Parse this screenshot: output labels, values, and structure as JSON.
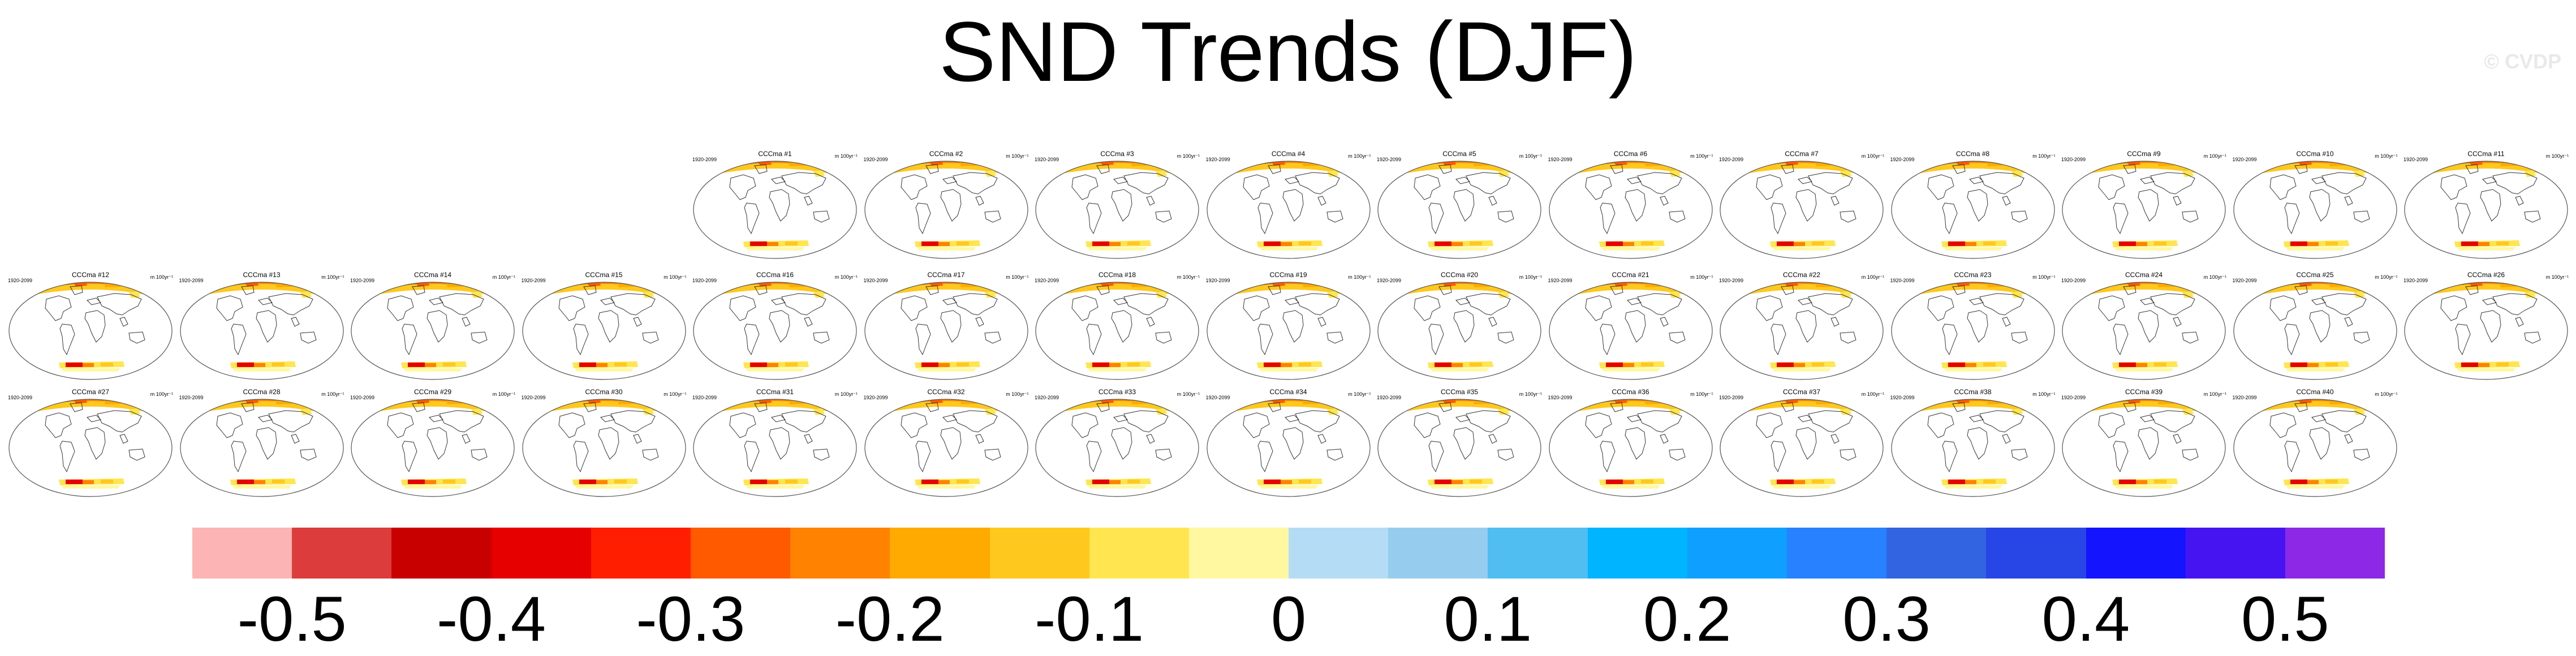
{
  "title": "SND Trends (DJF)",
  "watermark": "© CVDP",
  "panel_common": {
    "years": "1920-2099",
    "units": "m 100yr⁻¹"
  },
  "panels": [
    {
      "label": "CCCma #1"
    },
    {
      "label": "CCCma #2"
    },
    {
      "label": "CCCma #3"
    },
    {
      "label": "CCCma #4"
    },
    {
      "label": "CCCma #5"
    },
    {
      "label": "CCCma #6"
    },
    {
      "label": "CCCma #7"
    },
    {
      "label": "CCCma #8"
    },
    {
      "label": "CCCma #9"
    },
    {
      "label": "CCCma #10"
    },
    {
      "label": "CCCma #11"
    },
    {
      "label": "CCCma #12"
    },
    {
      "label": "CCCma #13"
    },
    {
      "label": "CCCma #14"
    },
    {
      "label": "CCCma #15"
    },
    {
      "label": "CCCma #16"
    },
    {
      "label": "CCCma #17"
    },
    {
      "label": "CCCma #18"
    },
    {
      "label": "CCCma #19"
    },
    {
      "label": "CCCma #20"
    },
    {
      "label": "CCCma #21"
    },
    {
      "label": "CCCma #22"
    },
    {
      "label": "CCCma #23"
    },
    {
      "label": "CCCma #24"
    },
    {
      "label": "CCCma #25"
    },
    {
      "label": "CCCma #26"
    },
    {
      "label": "CCCma #27"
    },
    {
      "label": "CCCma #28"
    },
    {
      "label": "CCCma #29"
    },
    {
      "label": "CCCma #30"
    },
    {
      "label": "CCCma #31"
    },
    {
      "label": "CCCma #32"
    },
    {
      "label": "CCCma #33"
    },
    {
      "label": "CCCma #34"
    },
    {
      "label": "CCCma #35"
    },
    {
      "label": "CCCma #36"
    },
    {
      "label": "CCCma #37"
    },
    {
      "label": "CCCma #38"
    },
    {
      "label": "CCCma #39"
    },
    {
      "label": "CCCma #40"
    }
  ],
  "colorbar": {
    "colors": [
      "#fcb4b4",
      "#dc3c3c",
      "#c80000",
      "#e60000",
      "#ff1e00",
      "#ff5a00",
      "#ff8200",
      "#ffaa00",
      "#ffc81e",
      "#ffe650",
      "#fff8a0",
      "#b4dcf5",
      "#96cdef",
      "#50bef0",
      "#00b4ff",
      "#0fa0ff",
      "#2882ff",
      "#3264e1",
      "#2846e6",
      "#1414ff",
      "#4614f0",
      "#8c28e6"
    ],
    "tick_labels": [
      "-0.5",
      "-0.4",
      "-0.3",
      "-0.2",
      "-0.1",
      "0",
      "0.1",
      "0.2",
      "0.3",
      "0.4",
      "0.5"
    ]
  }
}
